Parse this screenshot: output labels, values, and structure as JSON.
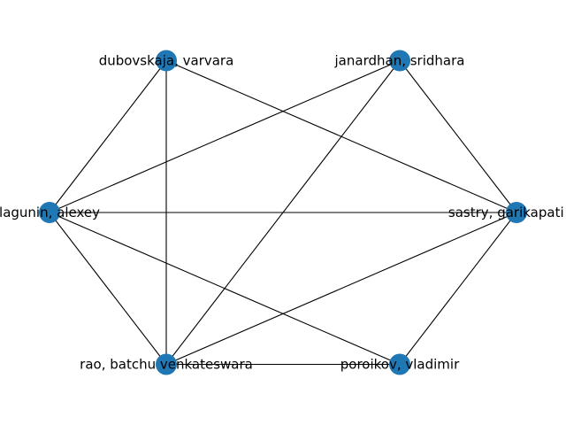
{
  "graph": {
    "node_color": "#1f77b4",
    "edge_color": "#000000",
    "background": "#ffffff",
    "layout": "circular",
    "nodes": [
      {
        "id": "sastry",
        "label": "sastry, garikapati na"
      },
      {
        "id": "janardhan",
        "label": "janardhan, sridhara"
      },
      {
        "id": "dubovskaja",
        "label": "dubovskaja, varvara"
      },
      {
        "id": "lagunin",
        "label": "lagunin, alexey"
      },
      {
        "id": "rao",
        "label": "rao, batchu venkateswara"
      },
      {
        "id": "poroikov",
        "label": "poroikov, vladimir"
      }
    ],
    "edges": [
      [
        "dubovskaja",
        "lagunin"
      ],
      [
        "dubovskaja",
        "rao"
      ],
      [
        "dubovskaja",
        "sastry"
      ],
      [
        "janardhan",
        "lagunin"
      ],
      [
        "janardhan",
        "rao"
      ],
      [
        "janardhan",
        "sastry"
      ],
      [
        "lagunin",
        "sastry"
      ],
      [
        "lagunin",
        "rao"
      ],
      [
        "lagunin",
        "poroikov"
      ],
      [
        "rao",
        "sastry"
      ],
      [
        "rao",
        "poroikov"
      ],
      [
        "sastry",
        "poroikov"
      ]
    ]
  }
}
